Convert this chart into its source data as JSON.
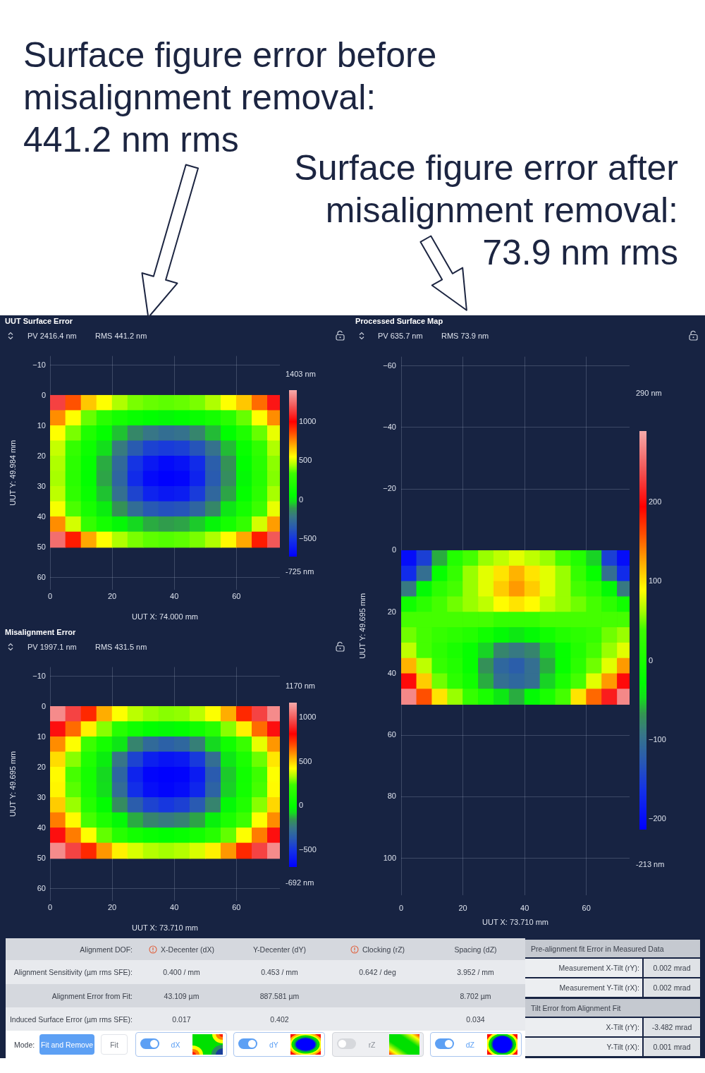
{
  "chart_data": [
    {
      "type": "scatter",
      "title": "UUT Surface Error",
      "subtitle": "PV 2416.4 nm",
      "annotations": [
        "RMS 441.2 nm",
        "1403 nm",
        "-725 nm",
        "Surface figure error before misalignment removal: 441.2 nm rms"
      ],
      "xlabel": "UUT X: 74.000 mm",
      "ylabel": "UUT Y: 49.984 mm",
      "marker": "square",
      "grid": true,
      "xlim": [
        0,
        74
      ],
      "xticks": [
        0,
        20,
        40,
        60
      ],
      "ylim": [
        64,
        -13
      ],
      "yticks": [
        {
          "value": -10,
          "label": "−10"
        },
        0,
        10,
        20,
        30,
        40,
        50,
        60
      ],
      "clim": [
        -725,
        1403
      ],
      "cticks": [
        1000,
        500,
        0,
        {
          "value": -500,
          "label": "−500"
        }
      ],
      "x": [
        2.5,
        7.5,
        12.5,
        17.5,
        22.5,
        27.5,
        32.5,
        37.5,
        42.5,
        47.5,
        52.5,
        57.5,
        62.5,
        67.5,
        72.5,
        2.5,
        7.5,
        12.5,
        17.5,
        22.5,
        27.5,
        32.5,
        37.5,
        42.5,
        47.5,
        52.5,
        57.5,
        62.5,
        67.5,
        72.5,
        2.5,
        7.5,
        12.5,
        17.5,
        22.5,
        27.5,
        32.5,
        37.5,
        42.5,
        47.5,
        52.5,
        57.5,
        62.5,
        67.5,
        72.5,
        2.5,
        7.5,
        12.5,
        17.5,
        22.5,
        27.5,
        32.5,
        37.5,
        42.5,
        47.5,
        52.5,
        57.5,
        62.5,
        67.5,
        72.5,
        2.5,
        7.5,
        12.5,
        17.5,
        22.5,
        27.5,
        32.5,
        37.5,
        42.5,
        47.5,
        52.5,
        57.5,
        62.5,
        67.5,
        72.5,
        2.5,
        7.5,
        12.5,
        17.5,
        22.5,
        27.5,
        32.5,
        37.5,
        42.5,
        47.5,
        52.5,
        57.5,
        62.5,
        67.5,
        72.5,
        2.5,
        7.5,
        12.5,
        17.5,
        22.5,
        27.5,
        32.5,
        37.5,
        42.5,
        47.5,
        52.5,
        57.5,
        62.5,
        67.5,
        72.5,
        2.5,
        7.5,
        12.5,
        17.5,
        22.5,
        27.5,
        32.5,
        37.5,
        42.5,
        47.5,
        52.5,
        57.5,
        62.5,
        67.5,
        72.5,
        2.5,
        7.5,
        12.5,
        17.5,
        22.5,
        27.5,
        32.5,
        37.5,
        42.5,
        47.5,
        52.5,
        57.5,
        62.5,
        67.5,
        72.5,
        2.5,
        7.5,
        12.5,
        17.5,
        22.5,
        27.5,
        32.5,
        37.5,
        42.5,
        47.5,
        52.5,
        57.5,
        62.5,
        67.5,
        72.5
      ],
      "values": [
        2.5,
        2.5,
        2.5,
        2.5,
        2.5,
        2.5,
        2.5,
        2.5,
        2.5,
        2.5,
        2.5,
        2.5,
        2.5,
        2.5,
        2.5,
        7.5,
        7.5,
        7.5,
        7.5,
        7.5,
        7.5,
        7.5,
        7.5,
        7.5,
        7.5,
        7.5,
        7.5,
        7.5,
        7.5,
        7.5,
        12.5,
        12.5,
        12.5,
        12.5,
        12.5,
        12.5,
        12.5,
        12.5,
        12.5,
        12.5,
        12.5,
        12.5,
        12.5,
        12.5,
        12.5,
        17.5,
        17.5,
        17.5,
        17.5,
        17.5,
        17.5,
        17.5,
        17.5,
        17.5,
        17.5,
        17.5,
        17.5,
        17.5,
        17.5,
        17.5,
        22.5,
        22.5,
        22.5,
        22.5,
        22.5,
        22.5,
        22.5,
        22.5,
        22.5,
        22.5,
        22.5,
        22.5,
        22.5,
        22.5,
        22.5,
        27.5,
        27.5,
        27.5,
        27.5,
        27.5,
        27.5,
        27.5,
        27.5,
        27.5,
        27.5,
        27.5,
        27.5,
        27.5,
        27.5,
        27.5,
        32.5,
        32.5,
        32.5,
        32.5,
        32.5,
        32.5,
        32.5,
        32.5,
        32.5,
        32.5,
        32.5,
        32.5,
        32.5,
        32.5,
        32.5,
        37.5,
        37.5,
        37.5,
        37.5,
        37.5,
        37.5,
        37.5,
        37.5,
        37.5,
        37.5,
        37.5,
        37.5,
        37.5,
        37.5,
        37.5,
        42.5,
        42.5,
        42.5,
        42.5,
        42.5,
        42.5,
        42.5,
        42.5,
        42.5,
        42.5,
        42.5,
        42.5,
        42.5,
        42.5,
        42.5,
        47.5,
        47.5,
        47.5,
        47.5,
        47.5,
        47.5,
        47.5,
        47.5,
        47.5,
        47.5,
        47.5,
        47.5,
        47.5,
        47.5,
        47.5
      ],
      "cvalues": [
        1150,
        850,
        650,
        550,
        450,
        400,
        380,
        370,
        380,
        400,
        450,
        550,
        650,
        800,
        1050,
        750,
        550,
        380,
        250,
        150,
        100,
        60,
        50,
        60,
        100,
        150,
        250,
        380,
        550,
        750,
        550,
        400,
        200,
        80,
        -50,
        -150,
        -220,
        -250,
        -230,
        -160,
        -60,
        60,
        200,
        380,
        520,
        480,
        300,
        120,
        -20,
        -200,
        -350,
        -450,
        -480,
        -460,
        -380,
        -230,
        -60,
        100,
        280,
        450,
        450,
        260,
        80,
        -80,
        -280,
        -500,
        -620,
        -680,
        -650,
        -540,
        -330,
        -120,
        60,
        240,
        420,
        440,
        250,
        70,
        -90,
        -300,
        -540,
        -680,
        -720,
        -700,
        -580,
        -350,
        -130,
        50,
        230,
        410,
        470,
        280,
        100,
        -50,
        -240,
        -440,
        -580,
        -620,
        -600,
        -480,
        -290,
        -90,
        80,
        260,
        440,
        540,
        350,
        160,
        20,
        -120,
        -260,
        -360,
        -400,
        -380,
        -300,
        -150,
        0,
        150,
        330,
        520,
        750,
        500,
        300,
        150,
        50,
        -30,
        -80,
        -100,
        -90,
        -40,
        40,
        150,
        300,
        500,
        720,
        1250,
        950,
        700,
        550,
        450,
        400,
        370,
        360,
        370,
        400,
        450,
        560,
        700,
        950,
        1200
      ]
    },
    {
      "type": "scatter",
      "title": "Misalignment Error",
      "subtitle": "PV 1997.1 nm",
      "annotations": [
        "RMS 431.5 nm",
        "1170 nm",
        "-692 nm"
      ],
      "xlabel": "UUT X: 73.710 mm",
      "ylabel": "UUT Y: 49.695 mm",
      "marker": "square",
      "grid": true,
      "xlim": [
        0,
        74
      ],
      "xticks": [
        0,
        20,
        40,
        60
      ],
      "ylim": [
        64,
        -13
      ],
      "yticks": [
        {
          "value": -10,
          "label": "−10"
        },
        0,
        10,
        20,
        30,
        40,
        50,
        60
      ],
      "clim": [
        -692,
        1170
      ],
      "cticks": [
        1000,
        500,
        0,
        {
          "value": -500,
          "label": "−500"
        }
      ],
      "x": [
        2.5,
        7.5,
        12.5,
        17.5,
        22.5,
        27.5,
        32.5,
        37.5,
        42.5,
        47.5,
        52.5,
        57.5,
        62.5,
        67.5,
        72.5,
        2.5,
        7.5,
        12.5,
        17.5,
        22.5,
        27.5,
        32.5,
        37.5,
        42.5,
        47.5,
        52.5,
        57.5,
        62.5,
        67.5,
        72.5,
        2.5,
        7.5,
        12.5,
        17.5,
        22.5,
        27.5,
        32.5,
        37.5,
        42.5,
        47.5,
        52.5,
        57.5,
        62.5,
        67.5,
        72.5,
        2.5,
        7.5,
        12.5,
        17.5,
        22.5,
        27.5,
        32.5,
        37.5,
        42.5,
        47.5,
        52.5,
        57.5,
        62.5,
        67.5,
        72.5,
        2.5,
        7.5,
        12.5,
        17.5,
        22.5,
        27.5,
        32.5,
        37.5,
        42.5,
        47.5,
        52.5,
        57.5,
        62.5,
        67.5,
        72.5,
        2.5,
        7.5,
        12.5,
        17.5,
        22.5,
        27.5,
        32.5,
        37.5,
        42.5,
        47.5,
        52.5,
        57.5,
        62.5,
        67.5,
        72.5,
        2.5,
        7.5,
        12.5,
        17.5,
        22.5,
        27.5,
        32.5,
        37.5,
        42.5,
        47.5,
        52.5,
        57.5,
        62.5,
        67.5,
        72.5,
        2.5,
        7.5,
        12.5,
        17.5,
        22.5,
        27.5,
        32.5,
        37.5,
        42.5,
        47.5,
        52.5,
        57.5,
        62.5,
        67.5,
        72.5,
        2.5,
        7.5,
        12.5,
        17.5,
        22.5,
        27.5,
        32.5,
        37.5,
        42.5,
        47.5,
        52.5,
        57.5,
        62.5,
        67.5,
        72.5,
        2.5,
        7.5,
        12.5,
        17.5,
        22.5,
        27.5,
        32.5,
        37.5,
        42.5,
        47.5,
        52.5,
        57.5,
        62.5,
        67.5,
        72.5
      ],
      "values": [
        2.5,
        2.5,
        2.5,
        2.5,
        2.5,
        2.5,
        2.5,
        2.5,
        2.5,
        2.5,
        2.5,
        2.5,
        2.5,
        2.5,
        2.5,
        7.5,
        7.5,
        7.5,
        7.5,
        7.5,
        7.5,
        7.5,
        7.5,
        7.5,
        7.5,
        7.5,
        7.5,
        7.5,
        7.5,
        7.5,
        12.5,
        12.5,
        12.5,
        12.5,
        12.5,
        12.5,
        12.5,
        12.5,
        12.5,
        12.5,
        12.5,
        12.5,
        12.5,
        12.5,
        12.5,
        17.5,
        17.5,
        17.5,
        17.5,
        17.5,
        17.5,
        17.5,
        17.5,
        17.5,
        17.5,
        17.5,
        17.5,
        17.5,
        17.5,
        17.5,
        22.5,
        22.5,
        22.5,
        22.5,
        22.5,
        22.5,
        22.5,
        22.5,
        22.5,
        22.5,
        22.5,
        22.5,
        22.5,
        22.5,
        22.5,
        27.5,
        27.5,
        27.5,
        27.5,
        27.5,
        27.5,
        27.5,
        27.5,
        27.5,
        27.5,
        27.5,
        27.5,
        27.5,
        27.5,
        27.5,
        32.5,
        32.5,
        32.5,
        32.5,
        32.5,
        32.5,
        32.5,
        32.5,
        32.5,
        32.5,
        32.5,
        32.5,
        32.5,
        32.5,
        32.5,
        37.5,
        37.5,
        37.5,
        37.5,
        37.5,
        37.5,
        37.5,
        37.5,
        37.5,
        37.5,
        37.5,
        37.5,
        37.5,
        37.5,
        37.5,
        42.5,
        42.5,
        42.5,
        42.5,
        42.5,
        42.5,
        42.5,
        42.5,
        42.5,
        42.5,
        42.5,
        42.5,
        42.5,
        42.5,
        42.5,
        47.5,
        47.5,
        47.5,
        47.5,
        47.5,
        47.5,
        47.5,
        47.5,
        47.5,
        47.5,
        47.5,
        47.5,
        47.5,
        47.5,
        47.5
      ],
      "cvalues": [
        1100,
        950,
        750,
        550,
        420,
        350,
        320,
        300,
        310,
        350,
        420,
        550,
        750,
        950,
        1100,
        850,
        650,
        450,
        300,
        150,
        60,
        0,
        -20,
        0,
        60,
        150,
        300,
        450,
        650,
        850,
        600,
        420,
        230,
        80,
        -60,
        -200,
        -300,
        -340,
        -310,
        -220,
        -80,
        60,
        220,
        400,
        580,
        480,
        300,
        120,
        -40,
        -250,
        -450,
        -580,
        -620,
        -600,
        -480,
        -280,
        -60,
        100,
        280,
        460,
        430,
        250,
        80,
        -80,
        -320,
        -560,
        -670,
        -690,
        -680,
        -590,
        -360,
        -100,
        60,
        240,
        420,
        440,
        260,
        90,
        -70,
        -290,
        -520,
        -640,
        -670,
        -650,
        -550,
        -330,
        -90,
        70,
        250,
        430,
        500,
        320,
        140,
        -10,
        -180,
        -350,
        -450,
        -490,
        -460,
        -370,
        -200,
        -20,
        130,
        300,
        490,
        620,
        430,
        250,
        110,
        -20,
        -130,
        -200,
        -230,
        -210,
        -140,
        -30,
        100,
        240,
        420,
        600,
        850,
        620,
        420,
        270,
        150,
        70,
        20,
        0,
        20,
        70,
        150,
        270,
        420,
        620,
        850,
        1100,
        950,
        750,
        580,
        450,
        380,
        340,
        330,
        340,
        380,
        450,
        580,
        750,
        950,
        1100
      ]
    },
    {
      "type": "scatter",
      "title": "Processed Surface Map",
      "subtitle": "PV 635.7 nm",
      "annotations": [
        "RMS 73.9 nm",
        "290 nm",
        "-213 nm",
        "Surface figure error after misalignment removal: 73.9 nm rms"
      ],
      "xlabel": "UUT X: 73.710 mm",
      "ylabel": "UUT Y: 49.695 mm",
      "marker": "square",
      "grid": true,
      "xlim": [
        0,
        74
      ],
      "xticks": [
        0,
        20,
        40,
        60
      ],
      "ylim": [
        112,
        -63
      ],
      "yticks": [
        {
          "value": -60,
          "label": "−60"
        },
        {
          "value": -40,
          "label": "−40"
        },
        {
          "value": -20,
          "label": "−20"
        },
        0,
        20,
        40,
        60,
        80,
        100
      ],
      "clim": [
        -213,
        290
      ],
      "cticks": [
        200,
        100,
        0,
        {
          "value": -100,
          "label": "−100"
        },
        {
          "value": -200,
          "label": "−200"
        }
      ],
      "x": [
        2.5,
        7.5,
        12.5,
        17.5,
        22.5,
        27.5,
        32.5,
        37.5,
        42.5,
        47.5,
        52.5,
        57.5,
        62.5,
        67.5,
        72.5,
        2.5,
        7.5,
        12.5,
        17.5,
        22.5,
        27.5,
        32.5,
        37.5,
        42.5,
        47.5,
        52.5,
        57.5,
        62.5,
        67.5,
        72.5,
        2.5,
        7.5,
        12.5,
        17.5,
        22.5,
        27.5,
        32.5,
        37.5,
        42.5,
        47.5,
        52.5,
        57.5,
        62.5,
        67.5,
        72.5,
        2.5,
        7.5,
        12.5,
        17.5,
        22.5,
        27.5,
        32.5,
        37.5,
        42.5,
        47.5,
        52.5,
        57.5,
        62.5,
        67.5,
        72.5,
        2.5,
        7.5,
        12.5,
        17.5,
        22.5,
        27.5,
        32.5,
        37.5,
        42.5,
        47.5,
        52.5,
        57.5,
        62.5,
        67.5,
        72.5,
        2.5,
        7.5,
        12.5,
        17.5,
        22.5,
        27.5,
        32.5,
        37.5,
        42.5,
        47.5,
        52.5,
        57.5,
        62.5,
        67.5,
        72.5,
        2.5,
        7.5,
        12.5,
        17.5,
        22.5,
        27.5,
        32.5,
        37.5,
        42.5,
        47.5,
        52.5,
        57.5,
        62.5,
        67.5,
        72.5,
        2.5,
        7.5,
        12.5,
        17.5,
        22.5,
        27.5,
        32.5,
        37.5,
        42.5,
        47.5,
        52.5,
        57.5,
        62.5,
        67.5,
        72.5,
        2.5,
        7.5,
        12.5,
        17.5,
        22.5,
        27.5,
        32.5,
        37.5,
        42.5,
        47.5,
        52.5,
        57.5,
        62.5,
        67.5,
        72.5,
        2.5,
        7.5,
        12.5,
        17.5,
        22.5,
        27.5,
        32.5,
        37.5,
        42.5,
        47.5,
        52.5,
        57.5,
        62.5,
        67.5,
        72.5
      ],
      "values": [
        2.5,
        2.5,
        2.5,
        2.5,
        2.5,
        2.5,
        2.5,
        2.5,
        2.5,
        2.5,
        2.5,
        2.5,
        2.5,
        2.5,
        2.5,
        7.5,
        7.5,
        7.5,
        7.5,
        7.5,
        7.5,
        7.5,
        7.5,
        7.5,
        7.5,
        7.5,
        7.5,
        7.5,
        7.5,
        7.5,
        12.5,
        12.5,
        12.5,
        12.5,
        12.5,
        12.5,
        12.5,
        12.5,
        12.5,
        12.5,
        12.5,
        12.5,
        12.5,
        12.5,
        12.5,
        17.5,
        17.5,
        17.5,
        17.5,
        17.5,
        17.5,
        17.5,
        17.5,
        17.5,
        17.5,
        17.5,
        17.5,
        17.5,
        17.5,
        17.5,
        22.5,
        22.5,
        22.5,
        22.5,
        22.5,
        22.5,
        22.5,
        22.5,
        22.5,
        22.5,
        22.5,
        22.5,
        22.5,
        22.5,
        22.5,
        27.5,
        27.5,
        27.5,
        27.5,
        27.5,
        27.5,
        27.5,
        27.5,
        27.5,
        27.5,
        27.5,
        27.5,
        27.5,
        27.5,
        27.5,
        32.5,
        32.5,
        32.5,
        32.5,
        32.5,
        32.5,
        32.5,
        32.5,
        32.5,
        32.5,
        32.5,
        32.5,
        32.5,
        32.5,
        32.5,
        37.5,
        37.5,
        37.5,
        37.5,
        37.5,
        37.5,
        37.5,
        37.5,
        37.5,
        37.5,
        37.5,
        37.5,
        37.5,
        37.5,
        37.5,
        42.5,
        42.5,
        42.5,
        42.5,
        42.5,
        42.5,
        42.5,
        42.5,
        42.5,
        42.5,
        42.5,
        42.5,
        42.5,
        42.5,
        42.5,
        47.5,
        47.5,
        47.5,
        47.5,
        47.5,
        47.5,
        47.5,
        47.5,
        47.5,
        47.5,
        47.5,
        47.5,
        47.5,
        47.5,
        47.5
      ],
      "cvalues": [
        -200,
        -150,
        -60,
        10,
        40,
        60,
        70,
        80,
        70,
        60,
        40,
        10,
        -50,
        -150,
        -200,
        -170,
        -100,
        -20,
        30,
        60,
        80,
        100,
        120,
        100,
        80,
        60,
        30,
        -20,
        -100,
        -170,
        -90,
        -30,
        20,
        40,
        60,
        80,
        110,
        130,
        110,
        80,
        60,
        40,
        20,
        -30,
        -90,
        -10,
        20,
        40,
        50,
        60,
        70,
        90,
        100,
        90,
        70,
        60,
        50,
        40,
        20,
        -10,
        40,
        40,
        40,
        40,
        40,
        40,
        30,
        30,
        30,
        40,
        40,
        40,
        40,
        40,
        40,
        50,
        40,
        30,
        20,
        10,
        -10,
        -30,
        -40,
        -30,
        -10,
        10,
        20,
        30,
        50,
        60,
        70,
        40,
        20,
        0,
        -20,
        -50,
        -80,
        -90,
        -80,
        -50,
        -20,
        10,
        40,
        60,
        80,
        120,
        70,
        30,
        10,
        -20,
        -70,
        -110,
        -120,
        -100,
        -60,
        -20,
        20,
        50,
        80,
        130,
        200,
        110,
        50,
        20,
        -10,
        -60,
        -100,
        -110,
        -100,
        -50,
        0,
        40,
        80,
        130,
        200,
        270,
        160,
        100,
        60,
        30,
        0,
        -40,
        -60,
        -30,
        0,
        40,
        100,
        150,
        210,
        270
      ]
    },
    {
      "type": "other",
      "ylabel": "Alignment DOF:",
      "categories": [
        "X-Decenter (dX)",
        "Y-Decenter (dY)",
        "Clocking (rZ)",
        "Spacing (dZ)"
      ],
      "y_categories": [
        "Alignment Sensitivity (µm rms SFE):",
        "Alignment Error from Fit:",
        "Induced Surface Error (µm rms SFE):"
      ],
      "cell_labels": [
        [
          "0.400 / mm",
          "0.453 / mm",
          "0.642 / deg",
          "3.952 / mm"
        ],
        [
          "43.109 µm",
          "887.581 µm",
          null,
          "8.702 µm"
        ],
        [
          "0.017",
          "0.402",
          null,
          "0.034"
        ]
      ],
      "annotations": [
        "Mode:",
        "Fit and Remove",
        "Fit",
        "dX",
        "dY",
        "rZ",
        "dZ"
      ]
    },
    {
      "type": "other",
      "title": "Pre-alignment fit Error in Measured Data",
      "y_categories": [
        "Measurement X-Tilt (rY):",
        "Measurement Y-Tilt (rX):"
      ],
      "cell_labels": [
        [
          "0.002 mrad"
        ],
        [
          "0.002 mrad"
        ]
      ]
    },
    {
      "type": "other",
      "title": "Tilt Error from Alignment Fit",
      "y_categories": [
        "X-Tilt (rY):",
        "Y-Tilt (rX):"
      ],
      "cell_labels": [
        [
          "-3.482 mrad"
        ],
        [
          "0.001 mrad"
        ]
      ]
    }
  ]
}
